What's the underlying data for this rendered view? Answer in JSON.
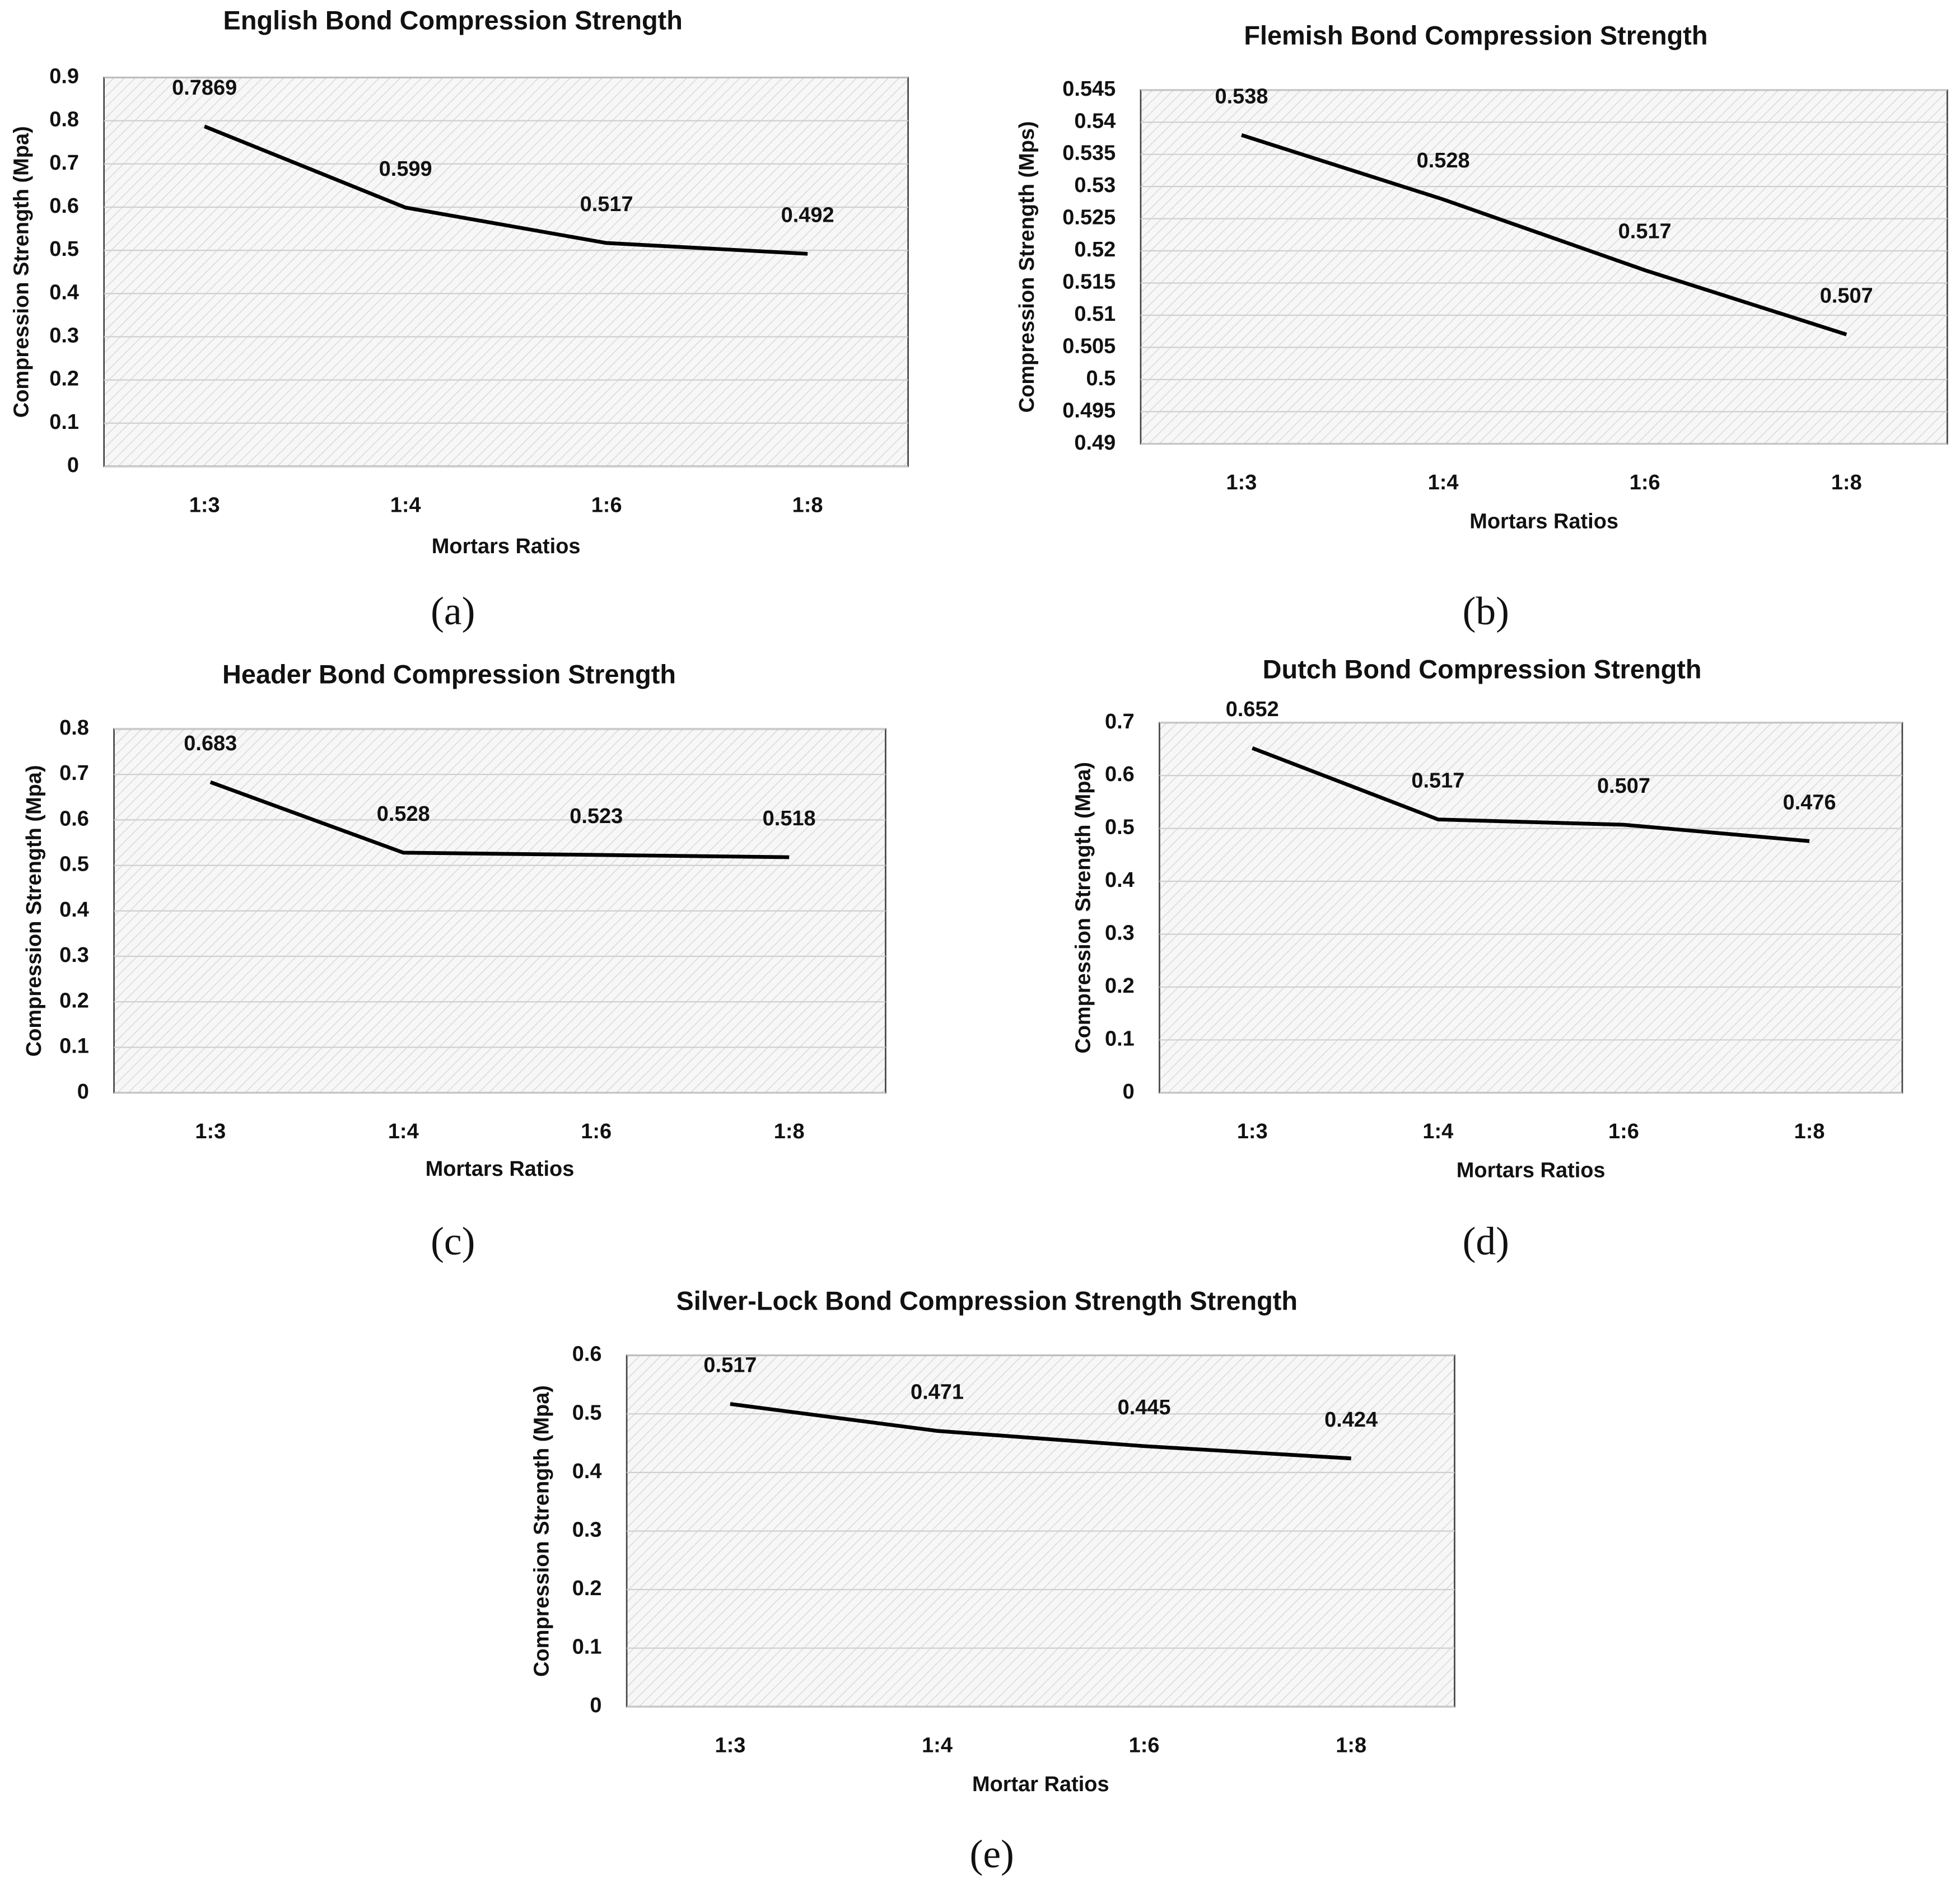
{
  "chart_data": [
    {
      "type": "line",
      "title": "English Bond  Compression Strength",
      "panel_label": "(a)",
      "x_label": "Mortars Ratios",
      "y_label": "Compression Strength (Mpa)",
      "categories": [
        "1:3",
        "1:4",
        "1:6",
        "1:8"
      ],
      "values": [
        0.7869,
        0.599,
        0.517,
        0.492
      ],
      "color": "#000000",
      "ylim": [
        0,
        0.9
      ],
      "yticks": [
        0,
        0.1,
        0.2,
        0.3,
        0.4,
        0.5,
        0.6,
        0.7,
        0.8,
        0.9
      ],
      "grid": true
    },
    {
      "type": "line",
      "title": "Flemish Bond Compression Strength",
      "panel_label": "(b)",
      "x_label": "Mortars Ratios",
      "y_label": "Compression Strength (Mps)",
      "categories": [
        "1:3",
        "1:4",
        "1:6",
        "1:8"
      ],
      "values": [
        0.538,
        0.528,
        0.517,
        0.507
      ],
      "color": "#000000",
      "ylim": [
        0.49,
        0.545
      ],
      "yticks": [
        0.49,
        0.495,
        0.5,
        0.505,
        0.51,
        0.515,
        0.52,
        0.525,
        0.53,
        0.535,
        0.54,
        0.545
      ],
      "grid": true
    },
    {
      "type": "line",
      "title": "Header Bond Compression Strength",
      "panel_label": "(c)",
      "x_label": "Mortars Ratios",
      "y_label": "Compression Strength (Mpa)",
      "categories": [
        "1:3",
        "1:4",
        "1:6",
        "1:8"
      ],
      "values": [
        0.683,
        0.528,
        0.523,
        0.518
      ],
      "color": "#000000",
      "ylim": [
        0,
        0.8
      ],
      "yticks": [
        0,
        0.1,
        0.2,
        0.3,
        0.4,
        0.5,
        0.6,
        0.7,
        0.8
      ],
      "grid": true
    },
    {
      "type": "line",
      "title": "Dutch Bond Compression Strength",
      "panel_label": "(d)",
      "x_label": "Mortars Ratios",
      "y_label": "Compression Strength (Mpa)",
      "categories": [
        "1:3",
        "1:4",
        "1:6",
        "1:8"
      ],
      "values": [
        0.652,
        0.517,
        0.507,
        0.476
      ],
      "color": "#000000",
      "ylim": [
        0,
        0.7
      ],
      "yticks": [
        0,
        0.1,
        0.2,
        0.3,
        0.4,
        0.5,
        0.6,
        0.7
      ],
      "grid": true
    },
    {
      "type": "line",
      "title": "Silver-Lock Bond Compression Strength Strength",
      "panel_label": "(e)",
      "x_label": "Mortar Ratios",
      "y_label": "Compression Strength (Mpa)",
      "categories": [
        "1:3",
        "1:4",
        "1:6",
        "1:8"
      ],
      "values": [
        0.517,
        0.471,
        0.445,
        0.424
      ],
      "color": "#000000",
      "ylim": [
        0,
        0.6
      ],
      "yticks": [
        0,
        0.1,
        0.2,
        0.3,
        0.4,
        0.5,
        0.6
      ],
      "grid": true
    }
  ]
}
